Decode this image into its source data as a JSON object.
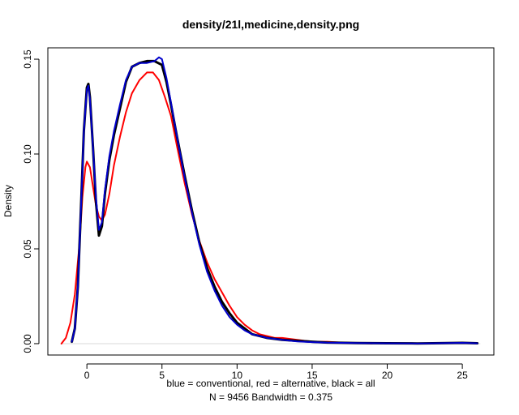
{
  "chart_data": {
    "type": "line",
    "title": "density/21l,medicine,density.png",
    "xlabel_line1": "blue = conventional, red = alternative, black = all",
    "xlabel_line2": "N = 9456   Bandwidth = 0.375",
    "ylabel": "Density",
    "xlim": [
      -2.6,
      27.1
    ],
    "ylim": [
      -0.006,
      0.156
    ],
    "x_ticks": [
      0,
      5,
      10,
      15,
      20,
      25
    ],
    "y_ticks": [
      0.0,
      0.05,
      0.1,
      0.15
    ],
    "y_tick_labels": [
      "0.00",
      "0.05",
      "0.10",
      "0.15"
    ],
    "series": [
      {
        "color": "#ff0000",
        "x": [
          -1.7,
          -1.4,
          -1.1,
          -0.8,
          -0.5,
          -0.3,
          -0.1,
          0.0,
          0.2,
          0.4,
          0.6,
          0.8,
          1.0,
          1.2,
          1.5,
          1.8,
          2.2,
          2.6,
          3.0,
          3.5,
          4.0,
          4.4,
          4.8,
          5.2,
          5.6,
          6.0,
          6.5,
          7.0,
          7.5,
          8.0,
          8.5,
          9.0,
          9.5,
          10.0,
          10.5,
          11.0,
          11.5,
          12.0,
          12.5,
          13.0,
          14.0,
          15.0,
          16.0,
          17.0,
          18.0,
          19.0
        ],
        "y": [
          0.0,
          0.003,
          0.011,
          0.026,
          0.052,
          0.077,
          0.093,
          0.096,
          0.093,
          0.083,
          0.073,
          0.067,
          0.065,
          0.068,
          0.079,
          0.094,
          0.109,
          0.122,
          0.132,
          0.139,
          0.143,
          0.143,
          0.139,
          0.13,
          0.12,
          0.104,
          0.085,
          0.068,
          0.054,
          0.043,
          0.034,
          0.027,
          0.02,
          0.014,
          0.01,
          0.007,
          0.005,
          0.004,
          0.003,
          0.003,
          0.002,
          0.001,
          0.001,
          0.0005,
          0.0003,
          0.0001
        ]
      },
      {
        "color": "#000000",
        "x": [
          -1.0,
          -0.8,
          -0.6,
          -0.4,
          -0.2,
          0.0,
          0.1,
          0.2,
          0.4,
          0.6,
          0.8,
          1.0,
          1.2,
          1.5,
          1.8,
          2.2,
          2.6,
          3.0,
          3.5,
          4.0,
          4.5,
          5.0,
          5.3,
          5.6,
          6.0,
          6.5,
          7.0,
          7.5,
          8.0,
          8.5,
          9.0,
          9.5,
          10.0,
          10.5,
          11.0,
          11.5,
          12.0,
          13.0,
          14.0,
          15.0,
          16.0,
          18.0,
          20.0,
          22.0,
          24.0,
          25.0,
          26.0
        ],
        "y": [
          0.001,
          0.008,
          0.03,
          0.07,
          0.112,
          0.135,
          0.137,
          0.13,
          0.104,
          0.075,
          0.057,
          0.062,
          0.079,
          0.097,
          0.11,
          0.124,
          0.138,
          0.146,
          0.148,
          0.149,
          0.149,
          0.147,
          0.138,
          0.126,
          0.109,
          0.089,
          0.07,
          0.053,
          0.04,
          0.03,
          0.022,
          0.016,
          0.011,
          0.008,
          0.005,
          0.004,
          0.003,
          0.002,
          0.0015,
          0.001,
          0.0006,
          0.0003,
          0.0002,
          0.0001,
          0.0003,
          0.0004,
          0.0002
        ]
      },
      {
        "color": "#0000cc",
        "x": [
          -1.0,
          -0.8,
          -0.6,
          -0.4,
          -0.2,
          0.0,
          0.1,
          0.2,
          0.4,
          0.6,
          0.8,
          1.0,
          1.2,
          1.5,
          1.8,
          2.2,
          2.6,
          3.0,
          3.5,
          4.0,
          4.5,
          4.8,
          5.0,
          5.3,
          5.6,
          6.0,
          6.5,
          7.0,
          7.5,
          8.0,
          8.5,
          9.0,
          9.5,
          10.0,
          10.5,
          11.0,
          11.5,
          12.0,
          13.0,
          14.0,
          15.0,
          16.0,
          18.0,
          20.0,
          22.0,
          24.0,
          25.0,
          26.0
        ],
        "y": [
          0.001,
          0.008,
          0.03,
          0.07,
          0.112,
          0.134,
          0.136,
          0.129,
          0.104,
          0.077,
          0.06,
          0.064,
          0.081,
          0.099,
          0.112,
          0.126,
          0.139,
          0.146,
          0.148,
          0.148,
          0.149,
          0.151,
          0.15,
          0.14,
          0.127,
          0.109,
          0.088,
          0.069,
          0.052,
          0.038,
          0.028,
          0.02,
          0.014,
          0.01,
          0.007,
          0.005,
          0.004,
          0.003,
          0.002,
          0.0012,
          0.0008,
          0.0005,
          0.0003,
          0.0002,
          0.0001,
          0.0003,
          0.0004,
          0.0002
        ]
      }
    ]
  }
}
